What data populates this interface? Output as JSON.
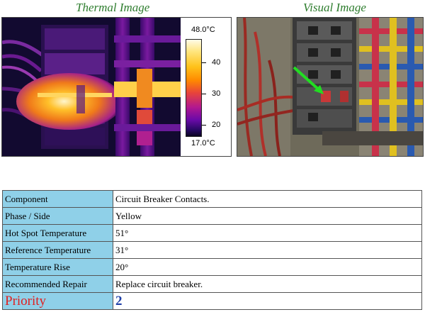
{
  "headings": {
    "thermal": "Thermal Image",
    "visual": "Visual Image"
  },
  "thermal_scale": {
    "max": "48.0°C",
    "min": "17.0°C",
    "ticks": [
      "40",
      "30",
      "20"
    ]
  },
  "table": {
    "rows": [
      {
        "label": "Component",
        "value": "Circuit Breaker Contacts."
      },
      {
        "label": "Phase / Side",
        "value": "Yellow"
      },
      {
        "label": "Hot Spot Temperature",
        "value": "51°"
      },
      {
        "label": "Reference Temperature",
        "value": "31°"
      },
      {
        "label": "Temperature Rise",
        "value": "20°"
      },
      {
        "label": "Recommended Repair",
        "value": "Replace circuit breaker."
      }
    ],
    "priority": {
      "label": "Priority",
      "value": "2"
    }
  },
  "colors": {
    "heading": "#2e7d2e",
    "label_cell_bg": "#8fd0e8",
    "priority_label": "#e02020",
    "priority_value": "#1f3fa8",
    "indicator_arrow": "#22dd22"
  }
}
